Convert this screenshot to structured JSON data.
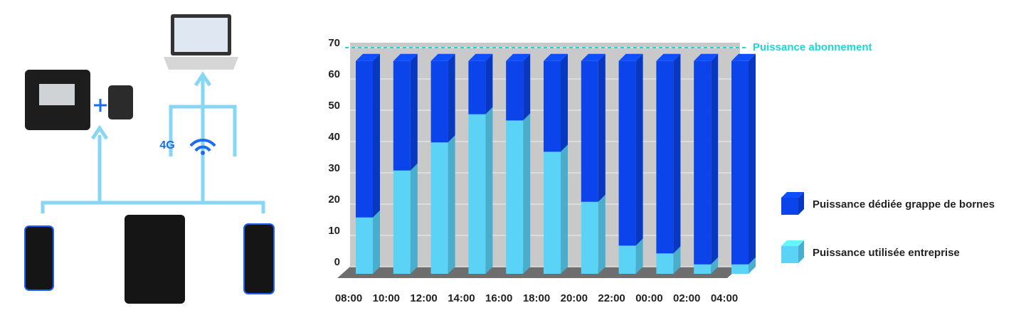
{
  "diagram": {
    "network_label": "4G"
  },
  "chart_data": {
    "type": "bar3d_stacked",
    "categories": [
      "08:00",
      "10:00",
      "12:00",
      "14:00",
      "16:00",
      "18:00",
      "20:00",
      "22:00",
      "00:00",
      "02:00",
      "04:00"
    ],
    "series": [
      {
        "name": "Puissance utilisée entreprise",
        "color": "#5ad3f7",
        "values": [
          18,
          33,
          42,
          51,
          49,
          39,
          23,
          9,
          6.5,
          3,
          3
        ]
      },
      {
        "name": "Puissance dédiée grappe de bornes",
        "color": "#0b44ea",
        "values": [
          50,
          35,
          26,
          17,
          19,
          29,
          45,
          59,
          61.5,
          65,
          65
        ]
      }
    ],
    "ylim": [
      0,
      70
    ],
    "yticks": [
      0,
      10,
      20,
      30,
      40,
      50,
      60,
      70
    ],
    "grid": true,
    "reference_line": {
      "value": 70,
      "label": "Puissance abonnement",
      "color": "#1fd6d6"
    }
  }
}
